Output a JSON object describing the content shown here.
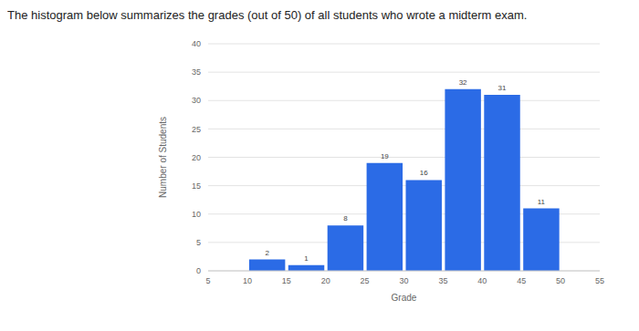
{
  "chart_data": {
    "type": "histogram",
    "title": "The histogram below summarizes the grades (out of 50) of all students who wrote a midterm exam.",
    "x_label": "Grade",
    "y_label": "Number of Students",
    "bins": [
      10,
      15,
      20,
      25,
      30,
      35,
      40,
      45,
      50
    ],
    "values": [
      2,
      1,
      8,
      19,
      16,
      32,
      31,
      11
    ],
    "color": "#2b6be6",
    "xlim": [
      5,
      55
    ],
    "xticks": [
      5,
      10,
      15,
      20,
      25,
      30,
      35,
      40,
      45,
      50,
      55
    ],
    "ylim": [
      0,
      40
    ],
    "yticks": [
      0,
      5,
      10,
      15,
      20,
      25,
      30,
      35,
      40
    ],
    "grid": true,
    "data_labels": true
  }
}
